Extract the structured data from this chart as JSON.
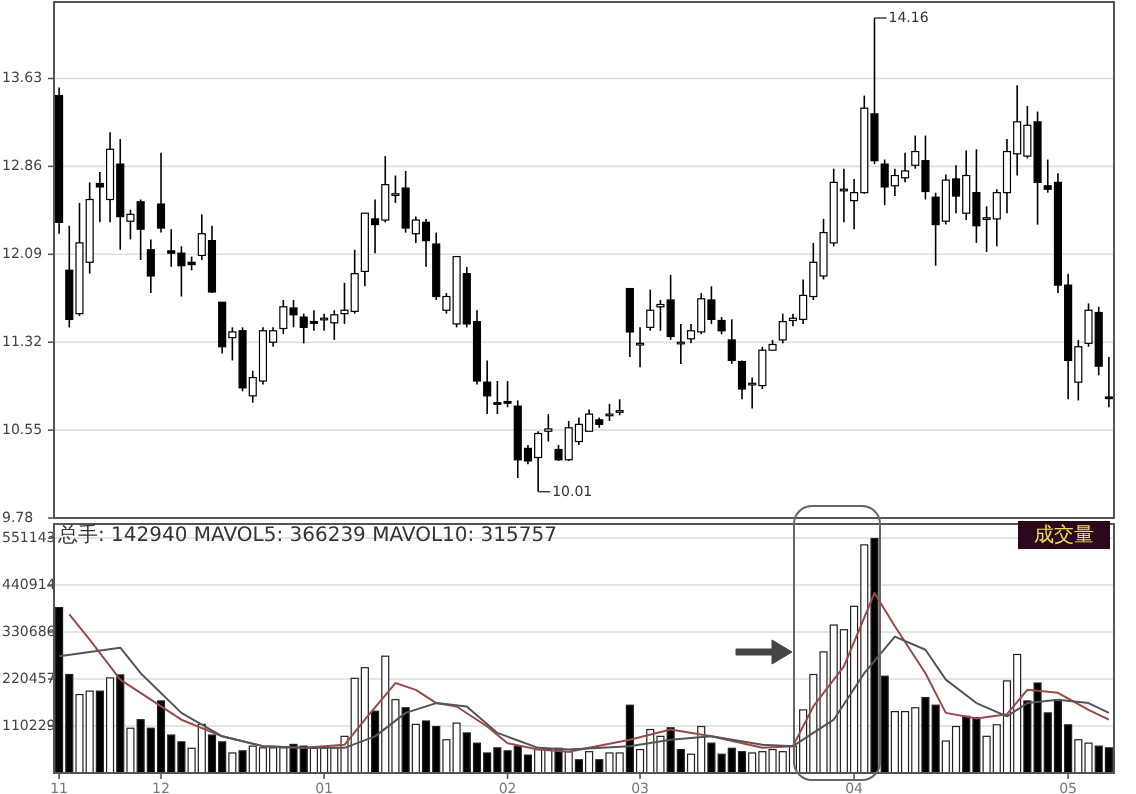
{
  "chart_data": [
    {
      "type": "candlestick",
      "categories": [
        null,
        null,
        null,
        null,
        null,
        null,
        null,
        null,
        null,
        null,
        null,
        null,
        null,
        null,
        null,
        null,
        null,
        null,
        null,
        null,
        null,
        null,
        null,
        null,
        null,
        null,
        null,
        null,
        null,
        null,
        null,
        null,
        null,
        null,
        null,
        null,
        null,
        null,
        null,
        null,
        null,
        null,
        null,
        null,
        null,
        null,
        null,
        null,
        null,
        null,
        null,
        null,
        null,
        null,
        null,
        null,
        null,
        null,
        null,
        null,
        null,
        null,
        null,
        null,
        null,
        null,
        null,
        null,
        null,
        null,
        null,
        null,
        null,
        null,
        null,
        null,
        null,
        null,
        null,
        null,
        null,
        null,
        null,
        null,
        null,
        null,
        null,
        null,
        null,
        null,
        null,
        null,
        null,
        null,
        null,
        null,
        null,
        null,
        null,
        null,
        null,
        null,
        null,
        null
      ],
      "ohlc": [
        [
          13.48,
          13.55,
          12.27,
          12.37
        ],
        [
          11.95,
          12.34,
          11.45,
          11.52
        ],
        [
          11.57,
          12.54,
          11.55,
          12.19
        ],
        [
          12.02,
          12.72,
          11.92,
          12.57
        ],
        [
          12.71,
          12.81,
          12.37,
          12.68
        ],
        [
          12.57,
          13.16,
          12.37,
          13.01
        ],
        [
          12.88,
          13.1,
          12.13,
          12.42
        ],
        [
          12.38,
          12.48,
          12.22,
          12.44
        ],
        [
          12.55,
          12.57,
          12.04,
          12.31
        ],
        [
          12.13,
          12.22,
          11.75,
          11.9
        ],
        [
          12.53,
          12.98,
          12.28,
          12.32
        ],
        [
          12.12,
          12.31,
          11.98,
          12.1
        ],
        [
          12.1,
          12.16,
          11.72,
          11.99
        ],
        [
          12.02,
          12.07,
          11.95,
          12.0
        ],
        [
          12.08,
          12.44,
          12.04,
          12.27
        ],
        [
          12.21,
          12.34,
          11.75,
          11.76
        ],
        [
          11.67,
          11.67,
          11.22,
          11.28
        ],
        [
          11.36,
          11.45,
          11.16,
          11.41
        ],
        [
          11.42,
          11.45,
          10.89,
          10.92
        ],
        [
          10.85,
          11.07,
          10.79,
          11.01
        ],
        [
          10.98,
          11.45,
          10.95,
          11.42
        ],
        [
          11.32,
          11.45,
          11.28,
          11.42
        ],
        [
          11.44,
          11.69,
          11.39,
          11.63
        ],
        [
          11.62,
          11.69,
          11.45,
          11.56
        ],
        [
          11.54,
          11.57,
          11.31,
          11.45
        ],
        [
          11.5,
          11.6,
          11.42,
          11.49
        ],
        [
          11.52,
          11.57,
          11.42,
          11.53
        ],
        [
          11.49,
          11.6,
          11.34,
          11.56
        ],
        [
          11.57,
          11.84,
          11.48,
          11.6
        ],
        [
          11.59,
          12.13,
          11.57,
          11.92
        ],
        [
          11.94,
          12.45,
          11.81,
          12.45
        ],
        [
          12.4,
          12.57,
          12.1,
          12.35
        ],
        [
          12.39,
          12.95,
          12.37,
          12.7
        ],
        [
          12.61,
          12.78,
          12.54,
          12.62
        ],
        [
          12.67,
          12.82,
          12.28,
          12.32
        ],
        [
          12.27,
          12.42,
          12.19,
          12.39
        ],
        [
          12.37,
          12.4,
          11.98,
          12.21
        ],
        [
          12.18,
          12.28,
          11.69,
          11.72
        ],
        [
          11.6,
          11.75,
          11.57,
          11.72
        ],
        [
          11.48,
          12.07,
          11.45,
          12.07
        ],
        [
          11.92,
          11.98,
          11.45,
          11.48
        ],
        [
          11.5,
          11.6,
          10.95,
          10.98
        ],
        [
          10.97,
          11.16,
          10.69,
          10.85
        ],
        [
          10.79,
          10.98,
          10.69,
          10.78
        ],
        [
          10.8,
          10.98,
          10.75,
          10.79
        ],
        [
          10.76,
          10.81,
          10.13,
          10.29
        ],
        [
          10.39,
          10.42,
          10.25,
          10.28
        ],
        [
          10.31,
          10.54,
          10.01,
          10.52
        ],
        [
          10.54,
          10.69,
          10.45,
          10.56
        ],
        [
          10.38,
          10.42,
          10.28,
          10.29
        ],
        [
          10.29,
          10.63,
          10.28,
          10.57
        ],
        [
          10.45,
          10.66,
          10.42,
          10.6
        ],
        [
          10.54,
          10.73,
          10.54,
          10.69
        ],
        [
          10.64,
          10.66,
          10.57,
          10.6
        ],
        [
          10.68,
          10.78,
          10.63,
          10.69
        ],
        [
          10.71,
          10.82,
          10.68,
          10.72
        ],
        [
          11.79,
          11.79,
          11.19,
          11.41
        ],
        [
          11.3,
          11.45,
          11.1,
          11.31
        ],
        [
          11.45,
          11.78,
          11.42,
          11.6
        ],
        [
          11.63,
          11.69,
          11.42,
          11.65
        ],
        [
          11.69,
          11.91,
          11.34,
          11.37
        ],
        [
          11.31,
          11.48,
          11.13,
          11.32
        ],
        [
          11.35,
          11.48,
          11.31,
          11.42
        ],
        [
          11.41,
          11.75,
          11.39,
          11.7
        ],
        [
          11.69,
          11.81,
          11.48,
          11.52
        ],
        [
          11.51,
          11.54,
          11.39,
          11.42
        ],
        [
          11.34,
          11.52,
          11.13,
          11.16
        ],
        [
          11.15,
          11.16,
          10.82,
          10.91
        ],
        [
          10.95,
          11.01,
          10.74,
          10.96
        ],
        [
          10.94,
          11.28,
          10.91,
          11.25
        ],
        [
          11.25,
          11.34,
          11.25,
          11.3
        ],
        [
          11.34,
          11.57,
          11.31,
          11.5
        ],
        [
          11.51,
          11.57,
          11.46,
          11.53
        ],
        [
          11.52,
          11.87,
          11.48,
          11.73
        ],
        [
          11.72,
          12.19,
          11.69,
          12.02
        ],
        [
          11.9,
          12.4,
          11.87,
          12.28
        ],
        [
          12.19,
          12.84,
          12.16,
          12.72
        ],
        [
          12.65,
          12.84,
          12.37,
          12.66
        ],
        [
          12.56,
          12.75,
          12.31,
          12.63
        ],
        [
          12.63,
          13.48,
          12.62,
          13.37
        ],
        [
          13.32,
          14.16,
          12.88,
          12.91
        ],
        [
          12.88,
          12.92,
          12.52,
          12.68
        ],
        [
          12.69,
          12.84,
          12.6,
          12.78
        ],
        [
          12.76,
          12.98,
          12.72,
          12.82
        ],
        [
          12.87,
          13.13,
          12.84,
          12.99
        ],
        [
          12.91,
          13.13,
          12.57,
          12.64
        ],
        [
          12.59,
          12.63,
          11.99,
          12.35
        ],
        [
          12.38,
          12.79,
          12.35,
          12.74
        ],
        [
          12.75,
          12.87,
          12.45,
          12.6
        ],
        [
          12.45,
          13.0,
          12.39,
          12.78
        ],
        [
          12.63,
          13.01,
          12.19,
          12.34
        ],
        [
          12.4,
          12.51,
          12.11,
          12.41
        ],
        [
          12.4,
          12.66,
          12.16,
          12.63
        ],
        [
          12.63,
          13.1,
          12.45,
          12.99
        ],
        [
          12.97,
          13.57,
          12.78,
          13.25
        ],
        [
          12.95,
          13.39,
          12.93,
          13.22
        ],
        [
          13.25,
          13.34,
          12.35,
          12.72
        ],
        [
          12.69,
          12.92,
          12.63,
          12.66
        ],
        [
          12.72,
          12.8,
          11.75,
          11.82
        ],
        [
          11.82,
          11.92,
          10.82,
          11.16
        ],
        [
          10.97,
          11.34,
          10.81,
          11.28
        ],
        [
          11.31,
          11.66,
          11.28,
          11.6
        ],
        [
          11.58,
          11.63,
          11.03,
          11.11
        ],
        [
          10.84,
          11.19,
          10.75,
          10.83
        ]
      ],
      "ylim": [
        9.78,
        14.3
      ],
      "yticks": [
        9.78,
        10.55,
        11.32,
        12.09,
        12.86,
        13.63
      ],
      "grid": "y",
      "tick_labels": "y",
      "annotations": [
        "14.16",
        "10.01"
      ]
    },
    {
      "type": "bar",
      "categories": [
        "11",
        null,
        null,
        null,
        null,
        null,
        null,
        null,
        null,
        null,
        "12",
        null,
        null,
        null,
        null,
        null,
        null,
        null,
        null,
        null,
        null,
        null,
        null,
        null,
        null,
        null,
        "01",
        null,
        null,
        null,
        null,
        null,
        null,
        null,
        null,
        null,
        null,
        null,
        null,
        null,
        null,
        null,
        null,
        null,
        "02",
        null,
        null,
        null,
        null,
        null,
        null,
        null,
        null,
        null,
        null,
        null,
        null,
        "03",
        null,
        null,
        null,
        null,
        null,
        null,
        null,
        null,
        null,
        null,
        null,
        null,
        null,
        null,
        null,
        null,
        null,
        null,
        null,
        null,
        "04",
        null,
        null,
        null,
        null,
        null,
        null,
        null,
        null,
        null,
        null,
        null,
        null,
        null,
        null,
        null,
        null,
        null,
        null,
        null,
        null,
        "05",
        null,
        null,
        null,
        null
      ],
      "series": [
        {
          "type": "bar",
          "values": [
            388000,
            231000,
            184000,
            192000,
            192000,
            223000,
            230000,
            105000,
            125000,
            105000,
            169000,
            89000,
            73000,
            58000,
            114000,
            89000,
            73000,
            47000,
            52000,
            63000,
            59000,
            59000,
            59000,
            67000,
            63000,
            58000,
            58000,
            59000,
            86000,
            222000,
            247000,
            145000,
            274000,
            172000,
            153000,
            114000,
            122000,
            109000,
            78000,
            117000,
            94000,
            70000,
            47000,
            59000,
            52000,
            63000,
            42000,
            55000,
            55000,
            58000,
            50000,
            31000,
            50000,
            31000,
            47000,
            47000,
            159000,
            55000,
            102000,
            86000,
            106000,
            55000,
            44000,
            109000,
            70000,
            44000,
            58000,
            50000,
            47000,
            50000,
            55000,
            50000,
            63000,
            148000,
            231000,
            284000,
            347000,
            336000,
            391000,
            535000,
            550000,
            227000,
            144000,
            144000,
            153000,
            177000,
            159000,
            75000,
            109000,
            133000,
            130000,
            86000,
            113000,
            216000,
            278000,
            169000,
            211000,
            141000,
            169000,
            113000,
            78000,
            70000,
            63000,
            59000
          ],
          "colors": [
            "#000000",
            "#000000",
            "#ffffff",
            "#ffffff",
            "#000000",
            "#ffffff",
            "#000000",
            "#ffffff",
            "#000000",
            "#000000",
            "#000000",
            "#000000",
            "#000000",
            "#ffffff",
            "#ffffff",
            "#000000",
            "#000000",
            "#ffffff",
            "#000000",
            "#ffffff",
            "#ffffff",
            "#ffffff",
            "#ffffff",
            "#000000",
            "#000000",
            "#ffffff",
            "#ffffff",
            "#ffffff",
            "#ffffff",
            "#ffffff",
            "#ffffff",
            "#000000",
            "#ffffff",
            "#ffffff",
            "#000000",
            "#ffffff",
            "#000000",
            "#000000",
            "#ffffff",
            "#ffffff",
            "#000000",
            "#000000",
            "#000000",
            "#000000",
            "#000000",
            "#000000",
            "#000000",
            "#ffffff",
            "#ffffff",
            "#000000",
            "#ffffff",
            "#000000",
            "#ffffff",
            "#000000",
            "#ffffff",
            "#ffffff",
            "#000000",
            "#ffffff",
            "#ffffff",
            "#ffffff",
            "#000000",
            "#000000",
            "#ffffff",
            "#ffffff",
            "#000000",
            "#000000",
            "#000000",
            "#000000",
            "#ffffff",
            "#ffffff",
            "#ffffff",
            "#ffffff",
            "#ffffff",
            "#ffffff",
            "#ffffff",
            "#ffffff",
            "#ffffff",
            "#ffffff",
            "#ffffff",
            "#ffffff",
            "#000000",
            "#000000",
            "#ffffff",
            "#ffffff",
            "#ffffff",
            "#000000",
            "#000000",
            "#ffffff",
            "#ffffff",
            "#000000",
            "#000000",
            "#ffffff",
            "#ffffff",
            "#ffffff",
            "#ffffff",
            "#000000",
            "#000000",
            "#000000",
            "#000000",
            "#000000",
            "#ffffff",
            "#ffffff",
            "#000000",
            "#000000"
          ]
        },
        {
          "type": "line",
          "color": "#9a4a4a",
          "values": [
            null,
            372000,
            null,
            313000,
            null,
            null,
            219000,
            null,
            null,
            172000,
            null,
            null,
            125000,
            null,
            null,
            null,
            86000,
            null,
            null,
            null,
            63000,
            null,
            null,
            null,
            59000,
            null,
            null,
            null,
            66000,
            null,
            125000,
            null,
            null,
            211000,
            null,
            195000,
            null,
            164000,
            null,
            156000,
            null,
            null,
            109000,
            null,
            70000,
            null,
            null,
            55000,
            null,
            null,
            50000,
            null,
            null,
            null,
            null,
            null,
            78000,
            null,
            null,
            null,
            102000,
            null,
            null,
            null,
            86000,
            null,
            null,
            null,
            null,
            59000,
            null,
            null,
            63000,
            null,
            156000,
            null,
            null,
            250000,
            null,
            null,
            422000,
            null,
            344000,
            null,
            null,
            234000,
            null,
            141000,
            null,
            null,
            128000,
            null,
            null,
            138000,
            null,
            195000,
            null,
            null,
            188000,
            null,
            null,
            148000,
            null,
            125000
          ]
        },
        {
          "type": "line",
          "color": "#555555",
          "values": [
            274000,
            null,
            null,
            284000,
            null,
            null,
            294000,
            null,
            234000,
            null,
            null,
            null,
            141000,
            null,
            null,
            null,
            86000,
            null,
            null,
            null,
            63000,
            null,
            null,
            null,
            59000,
            null,
            null,
            null,
            59000,
            null,
            null,
            86000,
            null,
            null,
            141000,
            null,
            null,
            164000,
            null,
            null,
            156000,
            null,
            null,
            94000,
            null,
            null,
            null,
            59000,
            null,
            null,
            55000,
            null,
            null,
            null,
            null,
            null,
            63000,
            null,
            null,
            null,
            78000,
            null,
            null,
            null,
            86000,
            null,
            null,
            null,
            null,
            66000,
            null,
            null,
            63000,
            null,
            null,
            null,
            125000,
            null,
            null,
            234000,
            null,
            null,
            320000,
            null,
            null,
            289000,
            null,
            219000,
            null,
            null,
            164000,
            null,
            null,
            133000,
            null,
            164000,
            null,
            null,
            172000,
            null,
            null,
            164000,
            null,
            141000
          ]
        }
      ],
      "ylim": [
        0,
        584000
      ],
      "yticks": [
        110229,
        220457,
        330686,
        440914,
        551143
      ],
      "grid": "y",
      "annotations": [
        "总手: 142940 MAVOL5: 366239 MAVOL10: 315757",
        "成交量"
      ]
    }
  ]
}
